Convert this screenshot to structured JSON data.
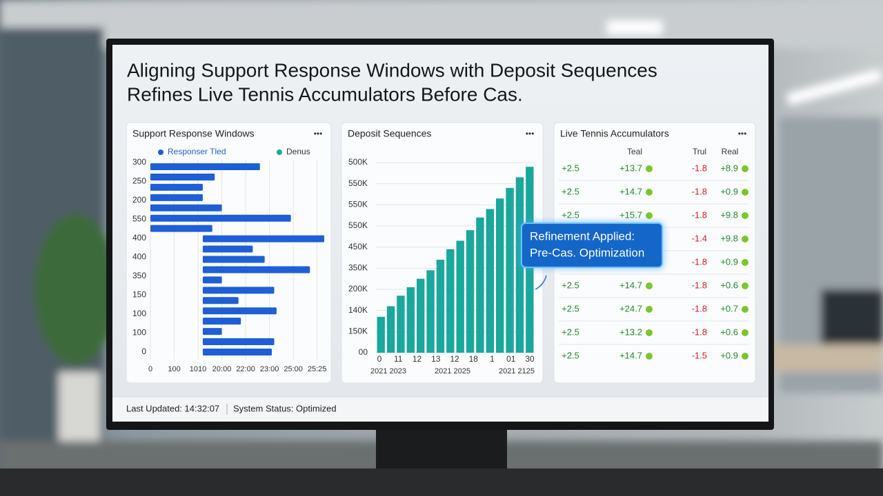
{
  "header": {
    "title_lines": [
      "Aligning Support Response Windows with Deposit Sequences",
      "Refines Live Tennis Accumulators Before Cas."
    ]
  },
  "panels": [
    {
      "title": "Support Response Windows",
      "menu": "•••",
      "chart_data": {
        "type": "hbar-range",
        "legend": [
          {
            "name": "Responser Tled",
            "color": "#1f5fd6"
          },
          {
            "name": "Denus",
            "color": "#1aa79c"
          }
        ],
        "ylabels": [
          "300",
          "250",
          "200",
          "550",
          "400",
          "400",
          "350",
          "150",
          "100",
          "100",
          "0"
        ],
        "xlim": [
          0,
          7.3
        ],
        "xticks": [
          {
            "value": 0,
            "label": "0"
          },
          {
            "value": 1,
            "label": "100"
          },
          {
            "value": 2,
            "label": "1010"
          },
          {
            "value": 3,
            "label": "20:00"
          },
          {
            "value": 4,
            "label": "22:00"
          },
          {
            "value": 5,
            "label": "23:00"
          },
          {
            "value": 6,
            "label": "25:00"
          },
          {
            "value": 7,
            "label": "25:25"
          }
        ],
        "color": "#1f5fd6",
        "grid": true,
        "starts": [
          0,
          0,
          0,
          0,
          0,
          0,
          0,
          2.2,
          2.2,
          2.2,
          2.2,
          2.2,
          2.2,
          2.2,
          2.2,
          2.2,
          2.2,
          2.2,
          2.2
        ],
        "ends": [
          4.6,
          2.7,
          2.2,
          2.2,
          3.0,
          5.9,
          2.6,
          7.3,
          4.3,
          4.8,
          6.7,
          3.0,
          5.2,
          3.7,
          5.3,
          3.8,
          3.0,
          5.2,
          5.1
        ]
      }
    },
    {
      "title": "Deposit Sequences",
      "menu": "•••",
      "chart_data": {
        "type": "bar",
        "color": "#1aa79c",
        "grid": true,
        "ylim": [
          0,
          9
        ],
        "yticks": [
          {
            "value": 0,
            "label": "00"
          },
          {
            "value": 1,
            "label": "150K"
          },
          {
            "value": 2,
            "label": "140K"
          },
          {
            "value": 3,
            "label": "200K"
          },
          {
            "value": 4,
            "label": "350K"
          },
          {
            "value": 5,
            "label": "450K"
          },
          {
            "value": 6,
            "label": "550K"
          },
          {
            "value": 7,
            "label": "550K"
          },
          {
            "value": 8,
            "label": "550K"
          },
          {
            "value": 9,
            "label": "500K"
          }
        ],
        "values": [
          1.7,
          2.2,
          2.7,
          3.1,
          3.5,
          3.9,
          4.4,
          4.9,
          5.3,
          5.8,
          6.4,
          6.8,
          7.3,
          7.8,
          8.3,
          8.8
        ],
        "xlabels": [
          "0",
          "11",
          "12",
          "13",
          "12",
          "18",
          "1",
          "01",
          "30"
        ],
        "xlabels2": [
          "2021 2023",
          "2021 2025",
          "2021 2125"
        ]
      }
    },
    {
      "title": "Live Tennis Accumulators",
      "menu": "•••",
      "table": {
        "headers": [
          "Teal",
          "Trul",
          "Real"
        ],
        "rows": [
          [
            "+2.5",
            "+13.7",
            "-1.8",
            "+8.9"
          ],
          [
            "+2.5",
            "+14.7",
            "-1.8",
            "+0.9"
          ],
          [
            "+2.5",
            "+15.7",
            "-1.8",
            "+9.8"
          ],
          [
            null,
            null,
            "-1.4",
            "+9.8"
          ],
          [
            null,
            null,
            "-1.8",
            "+0.9"
          ],
          [
            "+2.5",
            "+14.7",
            "-1.8",
            "+0.6"
          ],
          [
            "+2.5",
            "+24.7",
            "-1.8",
            "+0.7"
          ],
          [
            "+2.5",
            "+13.2",
            "-1.8",
            "+0.6"
          ],
          [
            "+2.5",
            "+14.7",
            "-1.5",
            "+0.9"
          ]
        ]
      }
    }
  ],
  "callout": {
    "lines": [
      "Refinement Applied:",
      "Pre-Cas. Optimization"
    ]
  },
  "footer": {
    "updated": "Last Updated: 14:32:07",
    "status": "System Status: Optimized"
  }
}
